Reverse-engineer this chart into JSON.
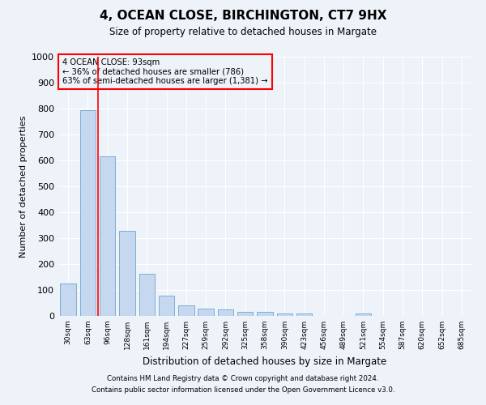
{
  "title": "4, OCEAN CLOSE, BIRCHINGTON, CT7 9HX",
  "subtitle": "Size of property relative to detached houses in Margate",
  "xlabel": "Distribution of detached houses by size in Margate",
  "ylabel": "Number of detached properties",
  "bar_color": "#c5d8f0",
  "bar_edge_color": "#7bafd4",
  "categories": [
    "30sqm",
    "63sqm",
    "96sqm",
    "128sqm",
    "161sqm",
    "194sqm",
    "227sqm",
    "259sqm",
    "292sqm",
    "325sqm",
    "358sqm",
    "390sqm",
    "423sqm",
    "456sqm",
    "489sqm",
    "521sqm",
    "554sqm",
    "587sqm",
    "620sqm",
    "652sqm",
    "685sqm"
  ],
  "values": [
    125,
    795,
    615,
    328,
    162,
    78,
    40,
    27,
    24,
    16,
    15,
    10,
    10,
    0,
    0,
    8,
    0,
    0,
    0,
    0,
    0
  ],
  "ylim": [
    0,
    1000
  ],
  "yticks": [
    0,
    100,
    200,
    300,
    400,
    500,
    600,
    700,
    800,
    900,
    1000
  ],
  "red_line_x": 1.5,
  "annotation_title": "4 OCEAN CLOSE: 93sqm",
  "annotation_line1": "← 36% of detached houses are smaller (786)",
  "annotation_line2": "63% of semi-detached houses are larger (1,381) →",
  "footnote1": "Contains HM Land Registry data © Crown copyright and database right 2024.",
  "footnote2": "Contains public sector information licensed under the Open Government Licence v3.0.",
  "background_color": "#eef2f9",
  "grid_color": "#ffffff"
}
